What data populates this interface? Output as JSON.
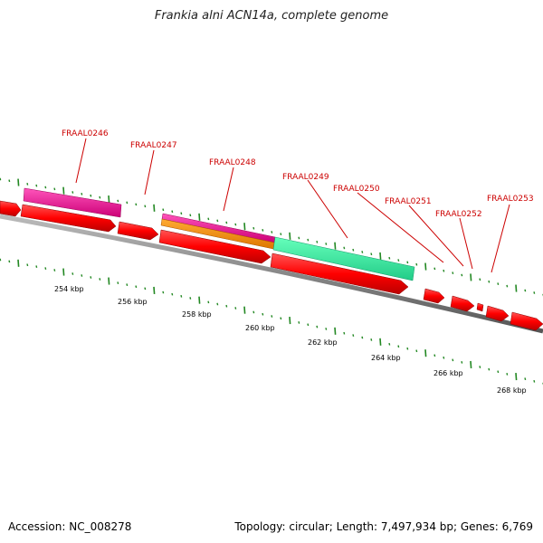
{
  "header": {
    "title": "Frankia alni ACN14a, complete genome"
  },
  "footer": {
    "accession": "Accession: NC_008278",
    "summary": "Topology: circular; Length: 7,497,934 bp; Genes: 6,769"
  },
  "genes": [
    {
      "name": "FRAAL0246"
    },
    {
      "name": "FRAAL0247"
    },
    {
      "name": "FRAAL0248"
    },
    {
      "name": "FRAAL0249"
    },
    {
      "name": "FRAAL0250"
    },
    {
      "name": "FRAAL0251"
    },
    {
      "name": "FRAAL0252"
    },
    {
      "name": "FRAAL0253"
    }
  ],
  "scale": {
    "ticks": [
      "254 kbp",
      "256 kbp",
      "258 kbp",
      "260 kbp",
      "262 kbp",
      "264 kbp",
      "266 kbp",
      "268 kbp"
    ]
  },
  "colors": {
    "cds": "#ff0000",
    "gene_magenta": "#ee1199",
    "gene_orange": "#ff8800",
    "gene_aqua": "#33ee99",
    "backbone": "#888888",
    "tick_green": "#228822",
    "label_red": "#cc0000"
  }
}
